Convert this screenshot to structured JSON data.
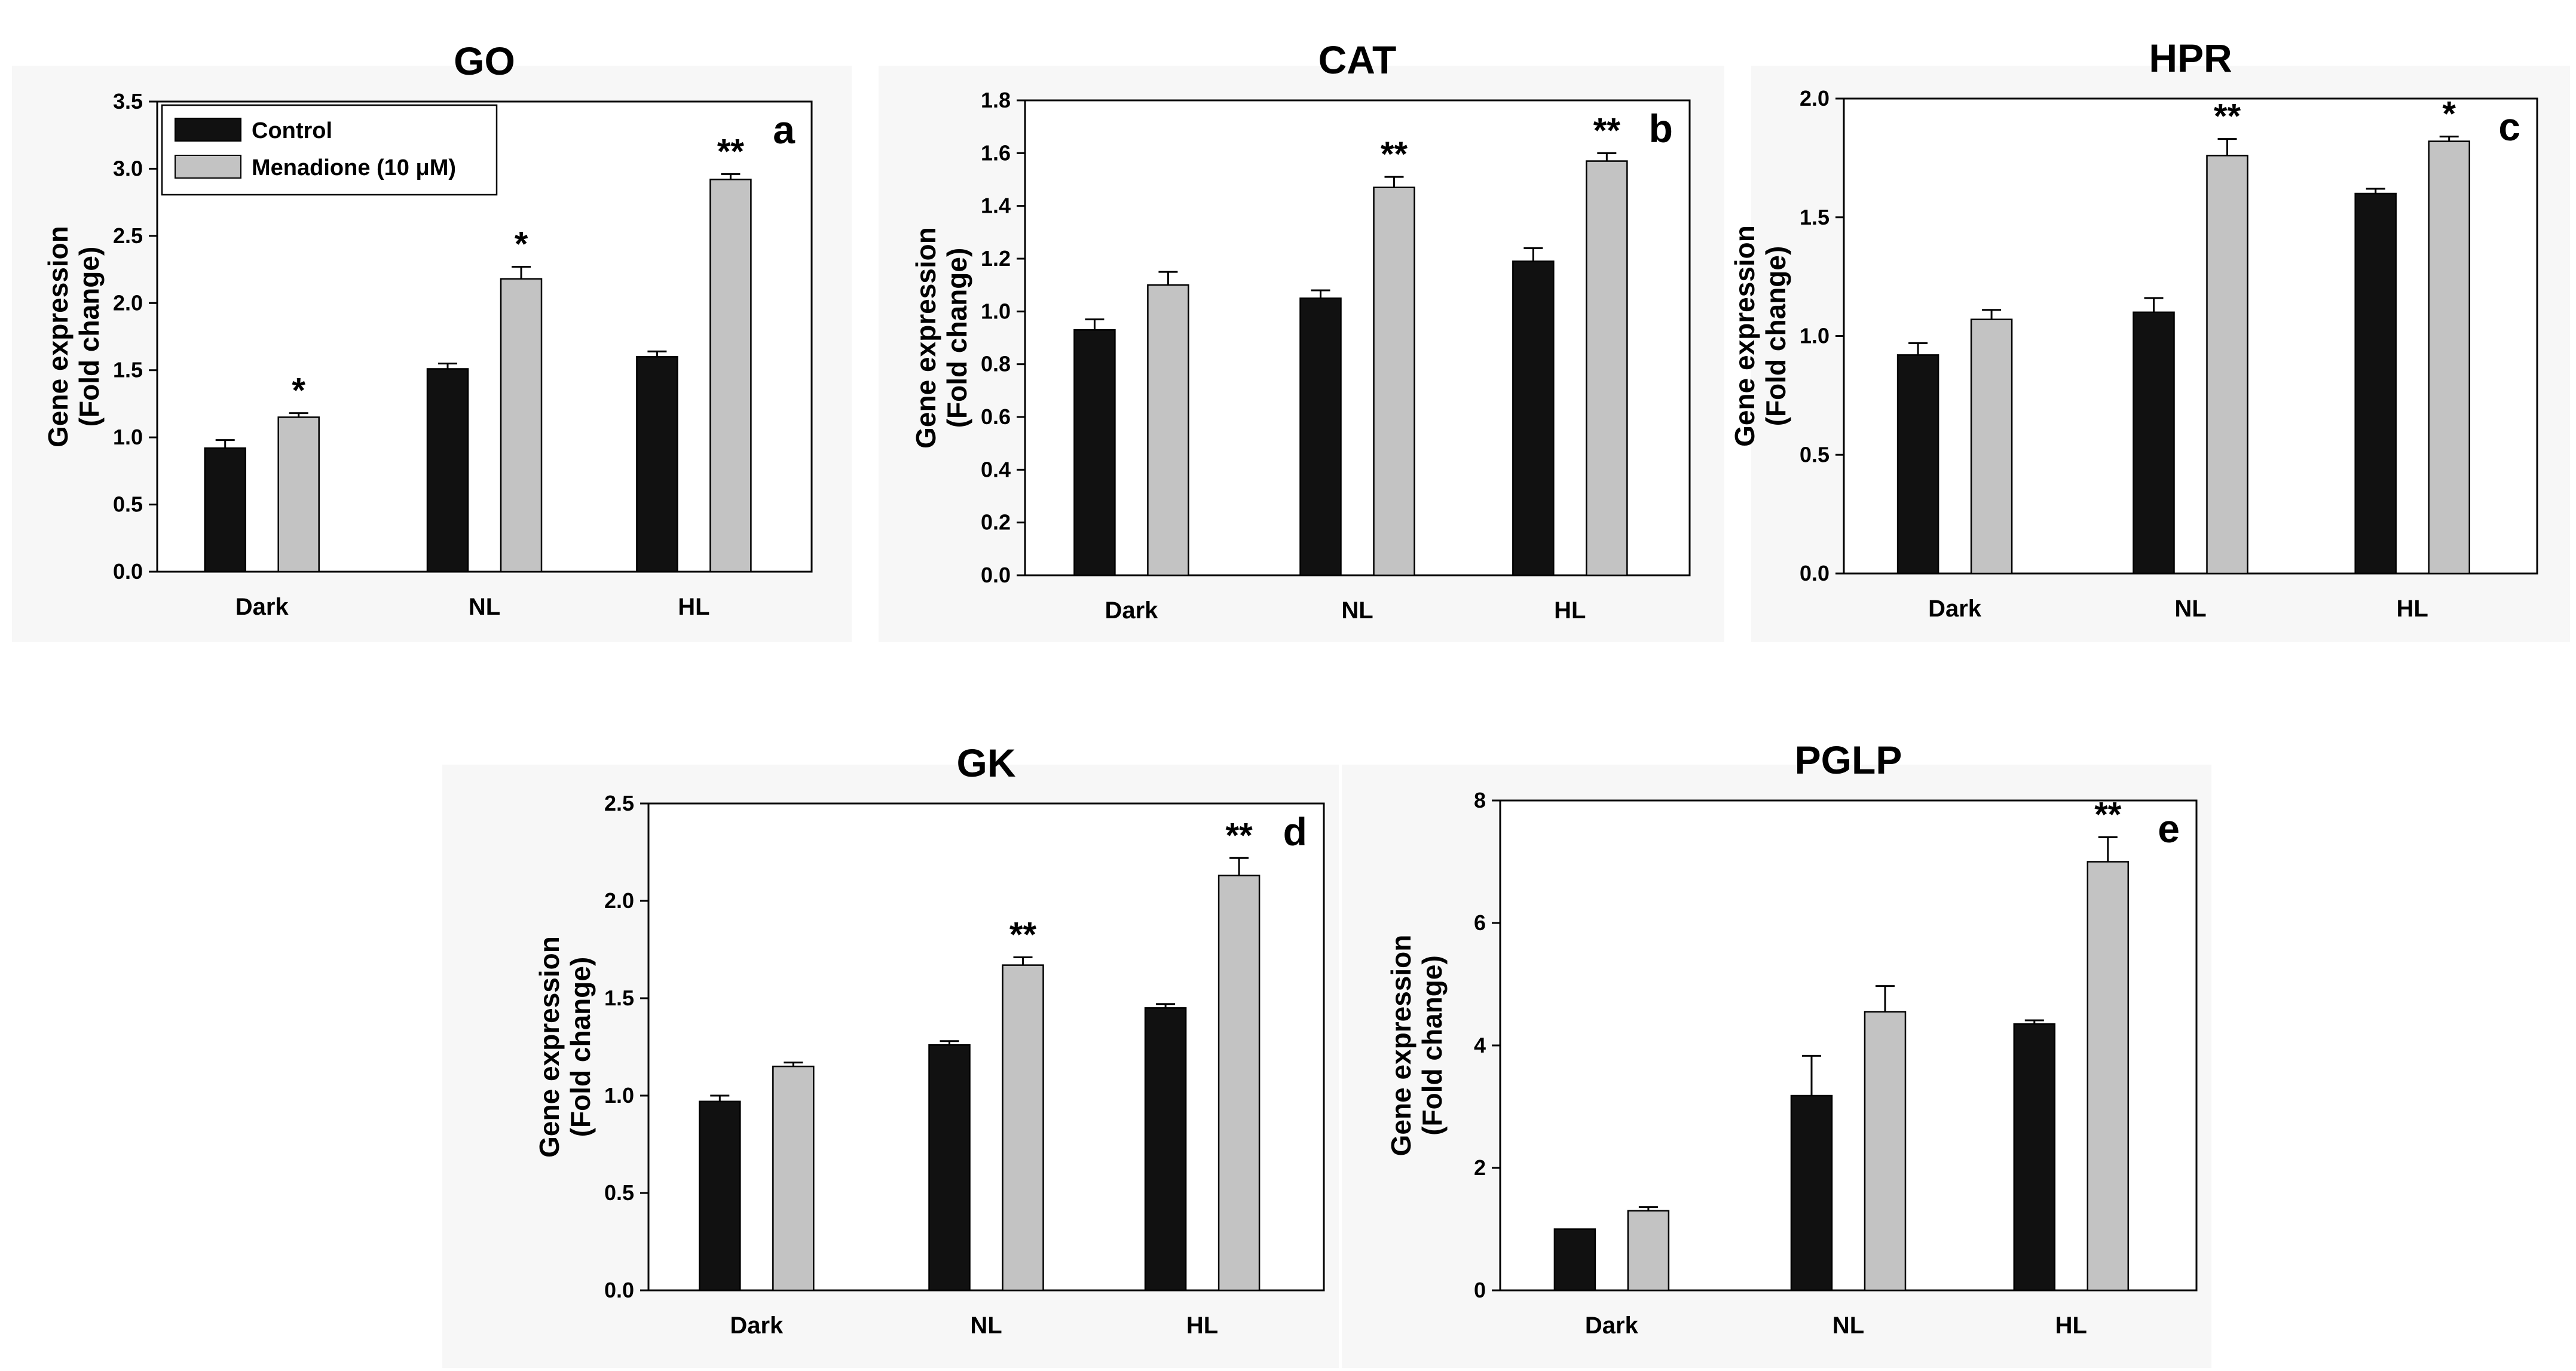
{
  "figure": {
    "legend": [
      {
        "name": "Control",
        "color": "#111111"
      },
      {
        "name": "Menadione (10 μM)",
        "color": "#c3c3c3"
      }
    ]
  },
  "chart_data": [
    {
      "type": "bar",
      "title": "GO",
      "panel_label": "a",
      "ylabel": [
        "Gene expression",
        "(Fold change)"
      ],
      "categories": [
        "Dark",
        "NL",
        "HL"
      ],
      "ylim": [
        0,
        3.5
      ],
      "yticks": [
        0,
        0.5,
        1.0,
        1.5,
        2.0,
        2.5,
        3.0,
        3.5
      ],
      "tick_decimals": 1,
      "series": [
        {
          "name": "Control",
          "values": [
            0.92,
            1.51,
            1.6
          ],
          "errors": [
            0.06,
            0.04,
            0.04
          ]
        },
        {
          "name": "Menadione (10 μM)",
          "values": [
            1.15,
            2.18,
            2.92
          ],
          "errors": [
            0.03,
            0.09,
            0.04
          ]
        }
      ],
      "annotations": [
        "",
        "",
        "",
        "*",
        "*",
        "**"
      ],
      "legend": true
    },
    {
      "type": "bar",
      "title": "CAT",
      "panel_label": "b",
      "ylabel": [
        "Gene expression",
        "(Fold change)"
      ],
      "categories": [
        "Dark",
        "NL",
        "HL"
      ],
      "ylim": [
        0,
        1.8
      ],
      "yticks": [
        0,
        0.2,
        0.4,
        0.6,
        0.8,
        1.0,
        1.2,
        1.4,
        1.6,
        1.8
      ],
      "tick_decimals": 1,
      "series": [
        {
          "name": "Control",
          "values": [
            0.93,
            1.05,
            1.19
          ],
          "errors": [
            0.04,
            0.03,
            0.05
          ]
        },
        {
          "name": "Menadione (10 μM)",
          "values": [
            1.1,
            1.47,
            1.57
          ],
          "errors": [
            0.05,
            0.04,
            0.03
          ]
        }
      ],
      "annotations": [
        "",
        "",
        "",
        "",
        "**",
        "**"
      ],
      "legend": false
    },
    {
      "type": "bar",
      "title": "HPR",
      "panel_label": "c",
      "ylabel": [
        "Gene expression",
        "(Fold change)"
      ],
      "categories": [
        "Dark",
        "NL",
        "HL"
      ],
      "ylim": [
        0,
        2.0
      ],
      "yticks": [
        0,
        0.5,
        1.0,
        1.5,
        2.0
      ],
      "tick_decimals": 1,
      "series": [
        {
          "name": "Control",
          "values": [
            0.92,
            1.1,
            1.6
          ],
          "errors": [
            0.05,
            0.06,
            0.02
          ]
        },
        {
          "name": "Menadione (10 μM)",
          "values": [
            1.07,
            1.76,
            1.82
          ],
          "errors": [
            0.04,
            0.07,
            0.02
          ]
        }
      ],
      "annotations": [
        "",
        "",
        "",
        "",
        "**",
        "*"
      ],
      "legend": false
    },
    {
      "type": "bar",
      "title": "GK",
      "panel_label": "d",
      "ylabel": [
        "Gene expression",
        "(Fold change)"
      ],
      "categories": [
        "Dark",
        "NL",
        "HL"
      ],
      "ylim": [
        0,
        2.5
      ],
      "yticks": [
        0,
        0.5,
        1.0,
        1.5,
        2.0,
        2.5
      ],
      "tick_decimals": 1,
      "series": [
        {
          "name": "Control",
          "values": [
            0.97,
            1.26,
            1.45
          ],
          "errors": [
            0.03,
            0.02,
            0.02
          ]
        },
        {
          "name": "Menadione (10 μM)",
          "values": [
            1.15,
            1.67,
            2.13
          ],
          "errors": [
            0.02,
            0.04,
            0.09
          ]
        }
      ],
      "annotations": [
        "",
        "",
        "",
        "",
        "**",
        "**"
      ],
      "legend": false
    },
    {
      "type": "bar",
      "title": "PGLP",
      "panel_label": "e",
      "ylabel": [
        "Gene expression",
        "(Fold change)"
      ],
      "categories": [
        "Dark",
        "NL",
        "HL"
      ],
      "ylim": [
        0,
        8
      ],
      "yticks": [
        0,
        2,
        4,
        6,
        8
      ],
      "tick_decimals": 0,
      "series": [
        {
          "name": "Control",
          "values": [
            1.0,
            3.18,
            4.35
          ],
          "errors": [
            0.0,
            0.65,
            0.06
          ]
        },
        {
          "name": "Menadione (10 μM)",
          "values": [
            1.3,
            4.55,
            7.0
          ],
          "errors": [
            0.06,
            0.42,
            0.4
          ]
        }
      ],
      "annotations": [
        "",
        "",
        "",
        "",
        "",
        "**"
      ],
      "legend": false
    }
  ]
}
